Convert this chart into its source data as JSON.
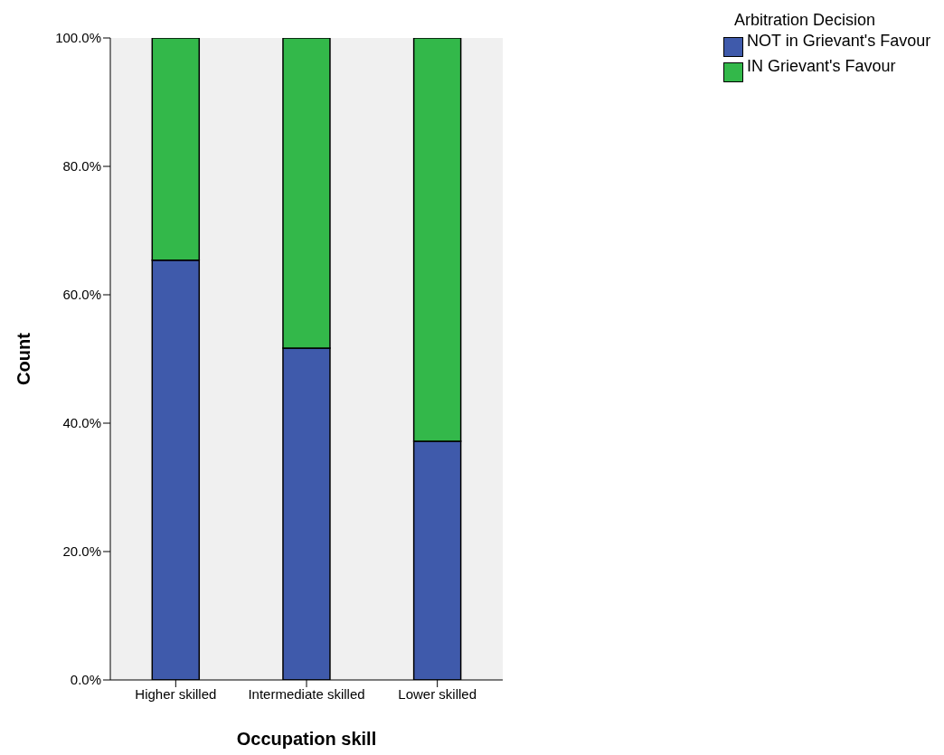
{
  "chart_data": {
    "type": "bar",
    "stacked": true,
    "xlabel": "Occupation skill",
    "ylabel": "Count",
    "legend_title": "Arbitration Decision",
    "legend": "top right",
    "grid": false,
    "categories": [
      "Higher skilled",
      "Intermediate skilled",
      "Lower skilled"
    ],
    "series": [
      {
        "name": "NOT in Grievant's Favour",
        "color": "#3f5aab",
        "values": [
          65.4,
          51.7,
          37.2
        ]
      },
      {
        "name": "IN Grievant's Favour",
        "color": "#33b84a",
        "values": [
          34.6,
          48.3,
          62.8
        ]
      }
    ],
    "ylim": [
      0,
      100
    ],
    "yticks": [
      {
        "value": 0,
        "label": "0.0%"
      },
      {
        "value": 20,
        "label": "20.0%"
      },
      {
        "value": 40,
        "label": "40.0%"
      },
      {
        "value": 60,
        "label": "60.0%"
      },
      {
        "value": 80,
        "label": "80.0%"
      },
      {
        "value": 100,
        "label": "100.0%"
      }
    ]
  }
}
